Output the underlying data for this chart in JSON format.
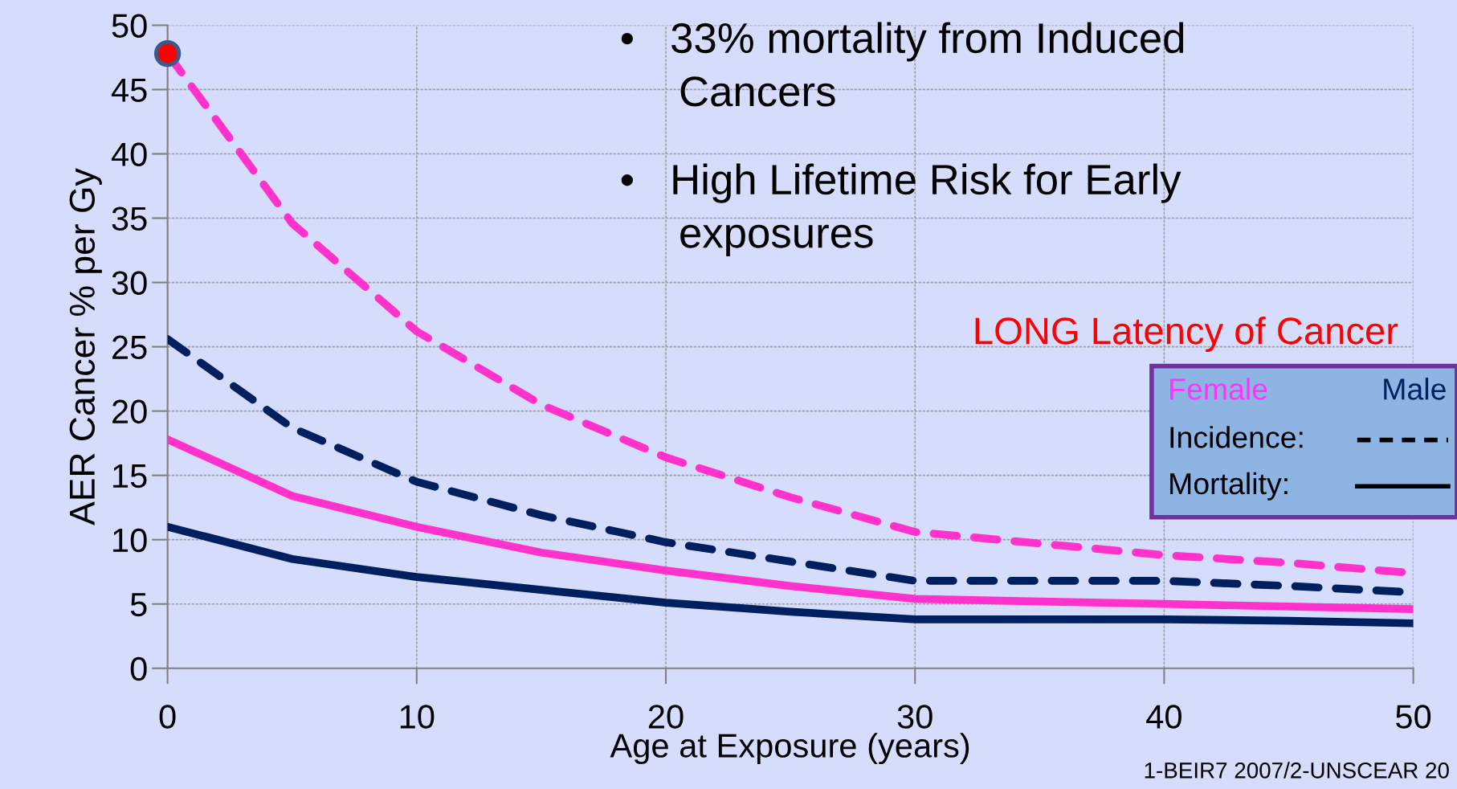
{
  "chart_data": {
    "type": "line",
    "xlabel": "Age at Exposure (years)",
    "ylabel": "AER Cancer % per Gy",
    "x": [
      0,
      5,
      10,
      15,
      20,
      25,
      30,
      35,
      40,
      45,
      50
    ],
    "series": [
      {
        "color": "#ff33cc",
        "line_style": "dashed",
        "values": [
          47.8,
          34.6,
          26.2,
          20.5,
          16.4,
          13.3,
          10.6,
          9.7,
          8.8,
          8.2,
          7.4
        ]
      },
      {
        "color": "#001f5f",
        "line_style": "dashed",
        "values": [
          25.6,
          18.7,
          14.5,
          11.9,
          9.8,
          8.3,
          6.8,
          6.8,
          6.8,
          6.4,
          5.9
        ]
      },
      {
        "color": "#ff33cc",
        "line_style": "solid",
        "values": [
          17.8,
          13.4,
          11.0,
          9.0,
          7.6,
          6.4,
          5.4,
          5.2,
          5.0,
          4.8,
          4.6
        ]
      },
      {
        "color": "#001f5f",
        "line_style": "solid",
        "values": [
          11.0,
          8.5,
          7.1,
          6.1,
          5.1,
          4.4,
          3.8,
          3.8,
          3.8,
          3.7,
          3.5
        ]
      },
      {
        "type": "scatter",
        "color": "#ff0000",
        "x": [
          0
        ],
        "values": [
          47.8
        ],
        "marker": "circle"
      }
    ],
    "xlim": [
      0,
      50
    ],
    "xticks": [
      0,
      10,
      20,
      30,
      40,
      50
    ],
    "ylim": [
      0,
      50
    ],
    "yticks": [
      0,
      5,
      10,
      15,
      20,
      25,
      30,
      35,
      40,
      45,
      50
    ],
    "grid": true,
    "annotations": [
      "•   33% mortality from Induced\n     Cancers",
      "•   High Lifetime Risk for Early\n     exposures",
      "LONG Latency of Cancer",
      "Female",
      "Male",
      "Incidence:",
      "Mortality:",
      "1-BEIR7 2007/2-UNSCEAR 20"
    ]
  }
}
